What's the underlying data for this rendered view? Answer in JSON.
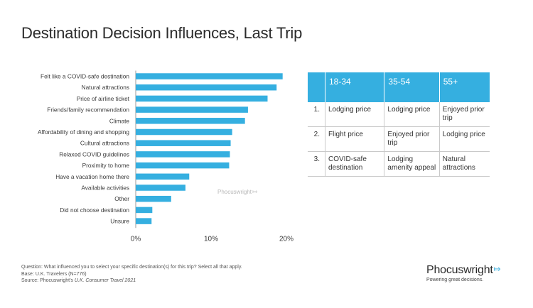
{
  "title": "Destination Decision Influences, Last Trip",
  "chart_data": {
    "type": "bar",
    "orientation": "horizontal",
    "categories": [
      "Felt like a COVID-safe destination",
      "Natural attractions",
      "Price of airline ticket",
      "Friends/family recommendation",
      "Climate",
      "Affordability of dining and shopping",
      "Cultural attractions",
      "Relaxed COVID guidelines",
      "Proximity to home",
      "Have a vacation home there",
      "Available activities",
      "Other",
      "Did not choose destination",
      "Unsure"
    ],
    "values": [
      19.5,
      18.7,
      17.5,
      14.9,
      14.5,
      12.8,
      12.6,
      12.5,
      12.4,
      7.1,
      6.6,
      4.7,
      2.2,
      2.1
    ],
    "xlim": [
      0,
      20
    ],
    "xticks": [
      "0%",
      "10%",
      "20%"
    ],
    "xtick_values": [
      0,
      10,
      20
    ],
    "xlabel": "",
    "ylabel": "",
    "grid": false,
    "bar_color": "#35afe0",
    "watermark": "Phocuswright"
  },
  "table": {
    "headers": [
      "",
      "18-34",
      "35-54",
      "55+"
    ],
    "rows": [
      [
        "1.",
        "Lodging price",
        "Lodging price",
        "Enjoyed prior trip"
      ],
      [
        "2.",
        "Flight price",
        "Enjoyed prior trip",
        "Lodging price"
      ],
      [
        "3.",
        "COVID-safe destination",
        "Lodging amenity appeal",
        "Natural attractions"
      ]
    ],
    "header_color": "#35afe0"
  },
  "footnotes": {
    "question": "Question: What influenced you to select your specific destination(s) for this trip? Select all that apply.",
    "base": "Base: U.K. Travelers (N=776)",
    "source_prefix": "Source: Phocuswright's ",
    "source_title": "U.K. Consumer Travel 2021"
  },
  "logo": {
    "name": "Phocuswright",
    "tagline": "Powering great decisions."
  }
}
